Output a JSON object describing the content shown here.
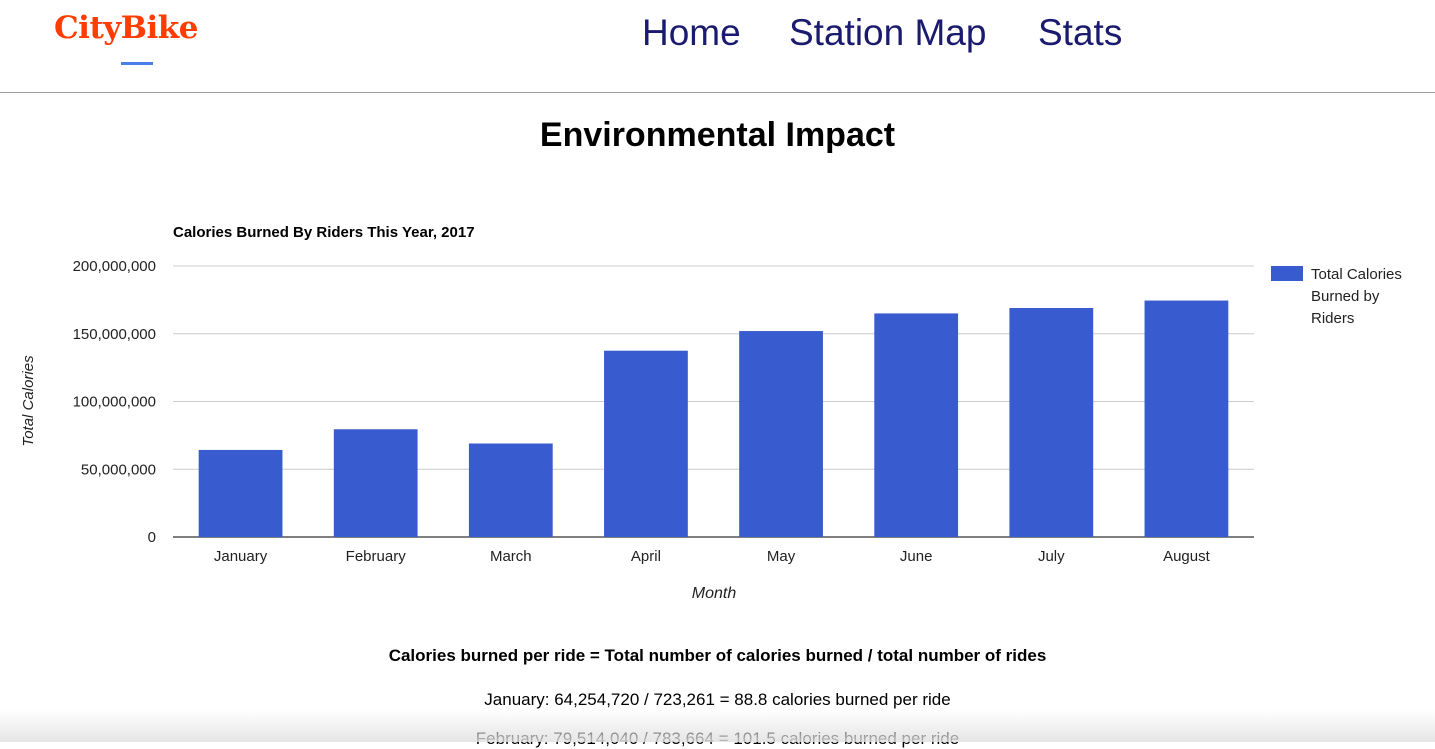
{
  "header": {
    "logo": "CityBike",
    "nav": [
      {
        "label": "Home"
      },
      {
        "label": "Station Map"
      },
      {
        "label": "Stats"
      }
    ]
  },
  "page": {
    "title": "Environmental Impact"
  },
  "chart_data": {
    "type": "bar",
    "title": "Calories Burned By Riders This Year, 2017",
    "xlabel": "Month",
    "ylabel": "Total Calories",
    "ylim": [
      0,
      200000000
    ],
    "yticks": [
      "200,000,000",
      "150,000,000",
      "100,000,000",
      "50,000,000",
      "0"
    ],
    "ytick_values": [
      200000000,
      150000000,
      100000000,
      50000000,
      0
    ],
    "categories": [
      "January",
      "February",
      "March",
      "April",
      "May",
      "June",
      "July",
      "August"
    ],
    "series": [
      {
        "name": "Total Calories Burned by Riders",
        "color": "#385ccf",
        "values": [
          64254720,
          79514040,
          69000000,
          137500000,
          152000000,
          165000000,
          169000000,
          174500000
        ]
      }
    ],
    "legend_lines": [
      "Total Calories",
      "Burned by",
      "Riders"
    ],
    "legend_position": "right",
    "grid": true
  },
  "formula": {
    "text": "Calories burned per ride = Total number of calories burned / total number of rides",
    "lines": [
      "January: 64,254,720 / 723,261 = 88.8 calories burned per ride",
      "February: 79,514,040 / 783,664 = 101.5 calories burned per ride"
    ]
  }
}
